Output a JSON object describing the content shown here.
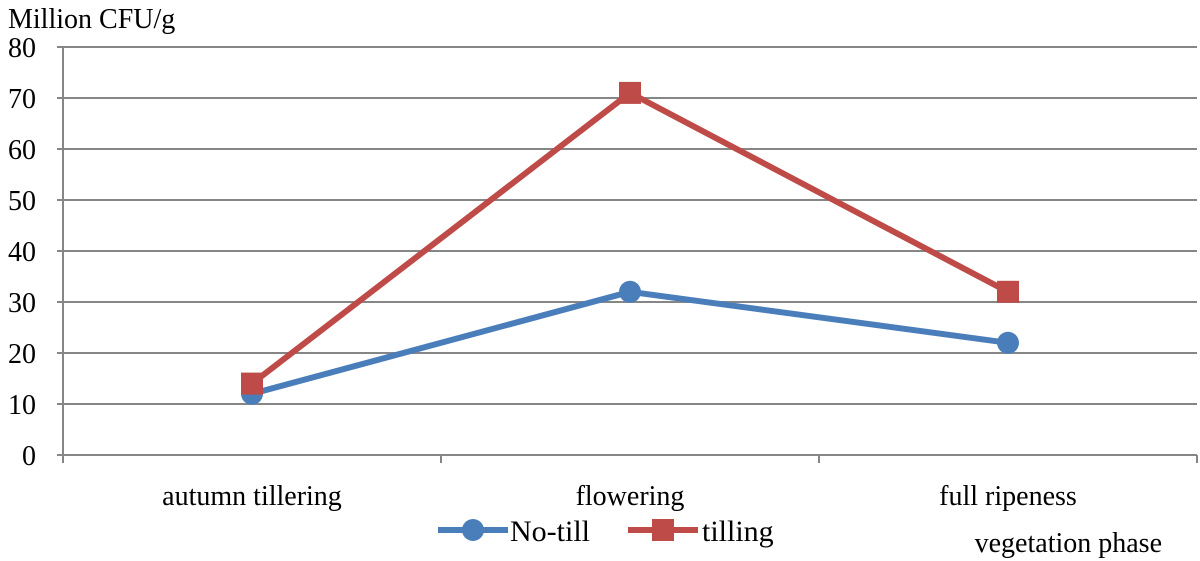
{
  "chart_data": {
    "type": "line",
    "ylabel": "Million CFU/g",
    "xlabel": "vegetation phase",
    "categories": [
      "autumn tillering",
      "flowering",
      "full ripeness"
    ],
    "ylim": [
      0,
      80
    ],
    "yticks": [
      0,
      10,
      20,
      30,
      40,
      50,
      60,
      70,
      80
    ],
    "grid": true,
    "legend_position": "bottom",
    "series": [
      {
        "name": "No-till",
        "values": [
          12,
          32,
          22
        ],
        "color": "#4a7ebb",
        "marker": "circle"
      },
      {
        "name": "tilling",
        "values": [
          14,
          71,
          32
        ],
        "color": "#be4b48",
        "marker": "square"
      }
    ]
  }
}
